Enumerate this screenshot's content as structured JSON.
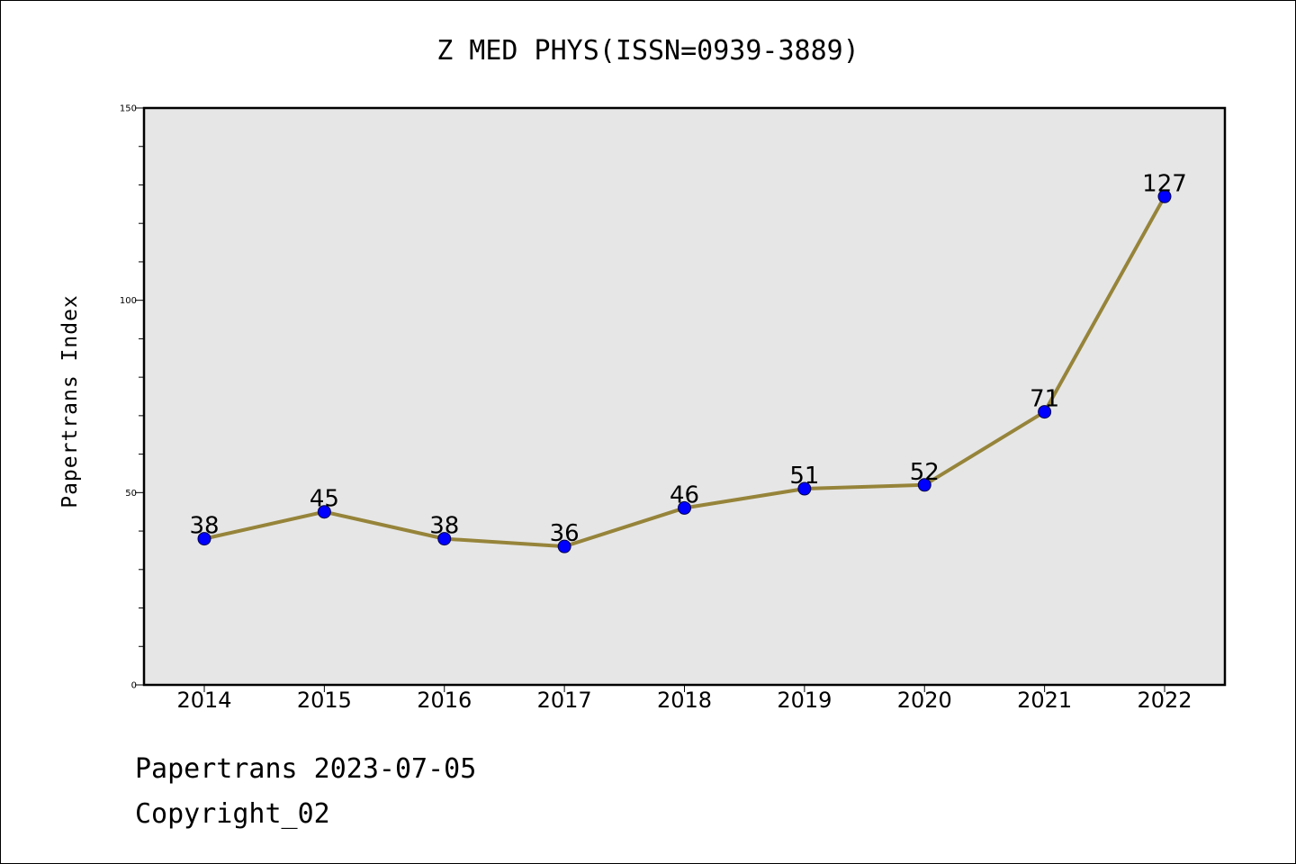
{
  "title": "Z MED PHYS(ISSN=0939-3889)",
  "colors": {
    "plot_background": "#e6e6e6",
    "line": "#96843a",
    "marker": "#0000ff",
    "marker_edge": "#00004d"
  },
  "footer": {
    "line1": "Papertrans 2023-07-05",
    "line2": "Copyright_02"
  },
  "chart_data": {
    "type": "line",
    "title": "Z MED PHYS(ISSN=0939-3889)",
    "xlabel": "",
    "ylabel": "Papertrans Index",
    "categories": [
      "2014",
      "2015",
      "2016",
      "2017",
      "2018",
      "2019",
      "2020",
      "2021",
      "2022"
    ],
    "series": [
      {
        "values": [
          38,
          45,
          38,
          36,
          46,
          51,
          52,
          71,
          127
        ]
      }
    ],
    "data_labels": [
      "38",
      "45",
      "38",
      "36",
      "46",
      "51",
      "52",
      "71",
      "127"
    ],
    "ylim": [
      0,
      150
    ],
    "yticks": [
      0,
      50,
      100,
      150
    ],
    "ytick_labels": [
      "0",
      "50",
      "100",
      "150"
    ],
    "grid": false,
    "legend": "none"
  }
}
